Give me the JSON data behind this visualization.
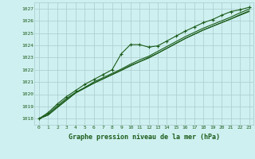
{
  "title": "Graphe pression niveau de la mer (hPa)",
  "bg_color": "#cff0f0",
  "grid_color": "#aacccc",
  "line_color": "#1a5c1a",
  "marker_color": "#1a5c1a",
  "text_color": "#1a5c1a",
  "xlim": [
    -0.5,
    23.5
  ],
  "ylim": [
    1017.5,
    1027.5
  ],
  "xticks": [
    0,
    1,
    2,
    3,
    4,
    5,
    6,
    7,
    8,
    9,
    10,
    11,
    12,
    13,
    14,
    15,
    16,
    17,
    18,
    19,
    20,
    21,
    22,
    23
  ],
  "yticks": [
    1018,
    1019,
    1020,
    1021,
    1022,
    1023,
    1024,
    1025,
    1026,
    1027
  ],
  "series": [
    {
      "x": [
        0,
        1,
        2,
        3,
        4,
        5,
        6,
        7,
        8,
        9,
        10,
        11,
        12,
        13,
        14,
        15,
        16,
        17,
        18,
        19,
        20,
        21,
        22,
        23
      ],
      "y": [
        1018.0,
        1018.5,
        1019.2,
        1019.8,
        1020.3,
        1020.8,
        1021.2,
        1021.6,
        1022.0,
        1023.3,
        1024.05,
        1024.05,
        1023.85,
        1023.95,
        1024.35,
        1024.75,
        1025.15,
        1025.5,
        1025.85,
        1026.1,
        1026.45,
        1026.75,
        1026.9,
        1027.1
      ],
      "marker": "+"
    },
    {
      "x": [
        0,
        1,
        2,
        3,
        4,
        5,
        6,
        7,
        8,
        9,
        10,
        11,
        12,
        13,
        14,
        15,
        16,
        17,
        18,
        19,
        20,
        21,
        22,
        23
      ],
      "y": [
        1018.0,
        1018.4,
        1019.05,
        1019.65,
        1020.15,
        1020.55,
        1021.0,
        1021.35,
        1021.7,
        1022.05,
        1022.45,
        1022.8,
        1023.1,
        1023.5,
        1023.9,
        1024.3,
        1024.7,
        1025.05,
        1025.4,
        1025.7,
        1026.0,
        1026.3,
        1026.65,
        1026.95
      ],
      "marker": null
    },
    {
      "x": [
        0,
        1,
        2,
        3,
        4,
        5,
        6,
        7,
        8,
        9,
        10,
        11,
        12,
        13,
        14,
        15,
        16,
        17,
        18,
        19,
        20,
        21,
        22,
        23
      ],
      "y": [
        1018.0,
        1018.3,
        1018.95,
        1019.55,
        1020.1,
        1020.5,
        1020.9,
        1021.25,
        1021.6,
        1021.95,
        1022.3,
        1022.65,
        1022.95,
        1023.35,
        1023.75,
        1024.15,
        1024.55,
        1024.9,
        1025.25,
        1025.55,
        1025.85,
        1026.15,
        1026.5,
        1026.8
      ],
      "marker": null
    },
    {
      "x": [
        0,
        1,
        2,
        3,
        4,
        5,
        6,
        7,
        8,
        9,
        10,
        11,
        12,
        13,
        14,
        15,
        16,
        17,
        18,
        19,
        20,
        21,
        22,
        23
      ],
      "y": [
        1018.0,
        1018.3,
        1018.9,
        1019.5,
        1020.1,
        1020.5,
        1020.9,
        1021.25,
        1021.6,
        1021.95,
        1022.35,
        1022.65,
        1023.0,
        1023.35,
        1023.75,
        1024.15,
        1024.55,
        1024.9,
        1025.25,
        1025.55,
        1025.85,
        1026.15,
        1026.45,
        1026.75
      ],
      "marker": null
    }
  ]
}
